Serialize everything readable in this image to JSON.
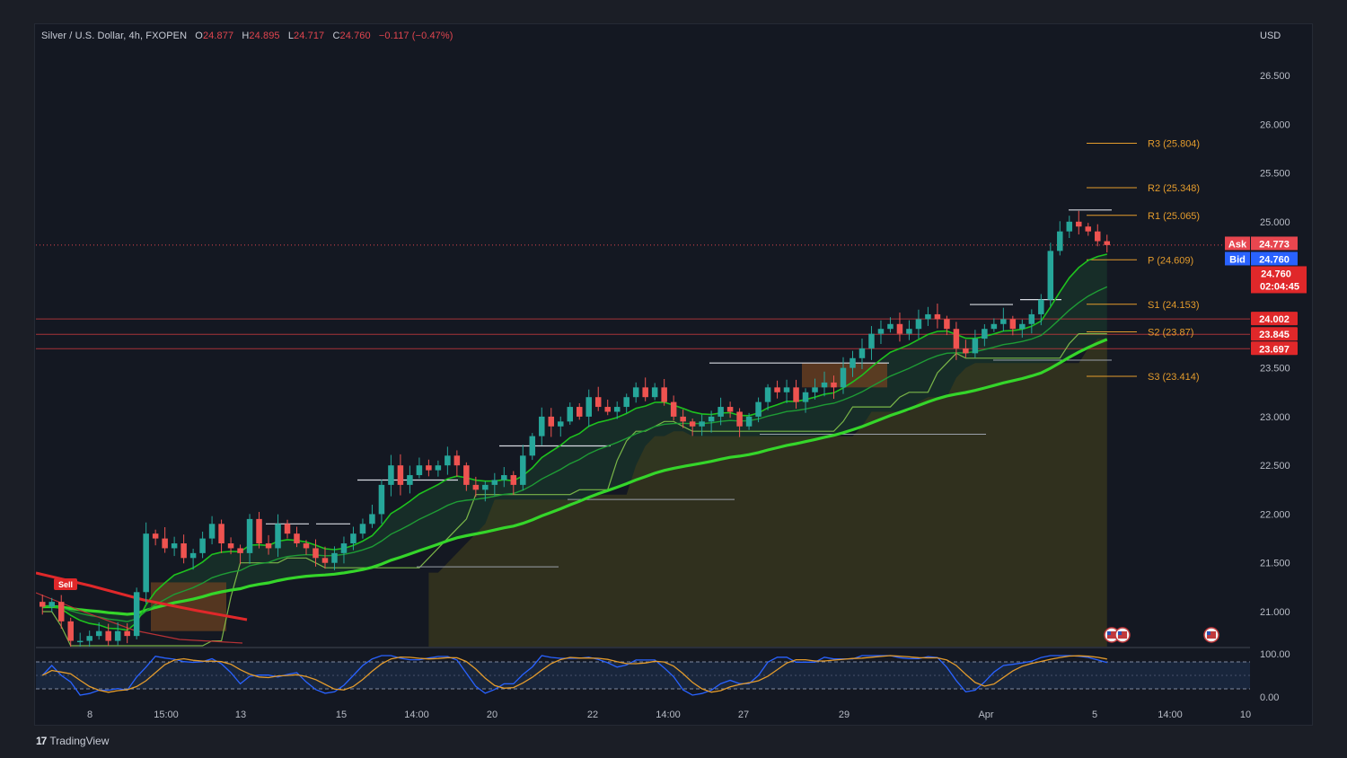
{
  "header": {
    "symbol": "Silver / U.S. Dollar, 4h, FXOPEN",
    "o_label": "O",
    "o_value": "24.877",
    "h_label": "H",
    "h_value": "24.895",
    "l_label": "L",
    "l_value": "24.717",
    "c_label": "C",
    "c_value": "24.760",
    "change": "−0.117 (−0.47%)"
  },
  "currency": "USD",
  "brand": {
    "logo": "17",
    "name": "TradingView"
  },
  "colors": {
    "up": "#26a69a",
    "down": "#ef5350",
    "pivot": "#e39b2c",
    "ema_fast": "#1ec21e",
    "ema_slow": "#35d62a",
    "sell": "#e0282a"
  },
  "chart_data": {
    "type": "candlestick",
    "y_ticks": [
      "26.500",
      "26.000",
      "25.500",
      "25.000",
      "24.500",
      "24.000",
      "23.500",
      "23.000",
      "22.500",
      "22.000",
      "21.500",
      "21.000"
    ],
    "y_tick_values": [
      26.5,
      26.0,
      25.5,
      25.0,
      24.5,
      24.0,
      23.5,
      23.0,
      22.5,
      22.0,
      21.5,
      21.0
    ],
    "ylim": [
      20.65,
      26.85
    ],
    "x_ticks": [
      "8",
      "15:00",
      "13",
      "15",
      "14:00",
      "20",
      "22",
      "14:00",
      "27",
      "29",
      "Apr",
      "5",
      "14:00",
      "10"
    ],
    "pivots": [
      {
        "label": "R3 (25.804)",
        "value": 25.804
      },
      {
        "label": "R2 (25.348)",
        "value": 25.348
      },
      {
        "label": "R1 (25.065)",
        "value": 25.065
      },
      {
        "label": "P (24.609)",
        "value": 24.609
      },
      {
        "label": "S1 (24.153)",
        "value": 24.153
      },
      {
        "label": "S2 (23.87)",
        "value": 23.87
      },
      {
        "label": "S3 (23.414)",
        "value": 23.414
      }
    ],
    "horizontal_levels": [
      {
        "label": "24.002",
        "value": 24.002
      },
      {
        "label": "23.845",
        "value": 23.845
      },
      {
        "label": "23.697",
        "value": 23.697
      }
    ],
    "ask": {
      "label": "Ask",
      "value": "24.773"
    },
    "bid": {
      "label": "Bid",
      "value": "24.760"
    },
    "last_price": {
      "value": "24.760",
      "countdown": "02:04:45"
    },
    "sell_signal": "Sell",
    "oscillator": {
      "upper_label": "100.00",
      "lower_label": "0.00"
    },
    "price_path": [
      [
        21.1,
        21.05,
        21.1,
        20.9,
        20.7
      ],
      [
        20.7,
        20.75,
        20.8,
        20.7,
        20.8
      ],
      [
        20.75,
        21.2,
        21.8,
        21.75,
        21.65,
        21.7,
        21.55,
        21.6,
        21.75,
        21.9,
        21.7,
        21.65,
        21.6,
        21.95,
        21.7,
        21.65,
        21.9,
        21.8,
        21.7,
        21.65,
        21.55,
        21.5,
        21.6,
        21.7,
        21.8,
        21.9,
        22.0,
        22.3,
        22.5,
        22.3,
        22.4,
        22.5,
        22.45,
        22.5,
        22.6,
        22.5,
        22.3,
        22.25,
        22.3,
        22.35,
        22.4,
        22.3,
        22.6,
        22.8,
        23.0,
        22.9,
        22.95,
        23.1,
        23.0,
        23.2,
        23.1,
        23.05,
        23.1,
        23.2,
        23.3,
        23.2,
        23.3,
        23.15,
        23.0,
        22.95,
        22.9,
        22.95,
        23.0,
        23.1,
        23.05,
        22.9,
        23.0,
        23.15,
        23.3,
        23.25,
        23.3,
        23.15,
        23.25,
        23.3,
        23.35,
        23.3,
        23.5,
        23.6,
        23.7,
        23.85,
        23.9,
        23.95,
        23.85,
        23.9,
        24.0,
        24.05,
        24.0,
        23.9,
        23.7,
        23.65,
        23.8,
        23.9,
        23.95,
        24.0,
        23.9,
        23.95,
        24.05,
        24.2,
        24.7,
        24.9,
        25.0,
        24.95,
        24.9,
        24.8,
        24.76
      ]
    ]
  }
}
